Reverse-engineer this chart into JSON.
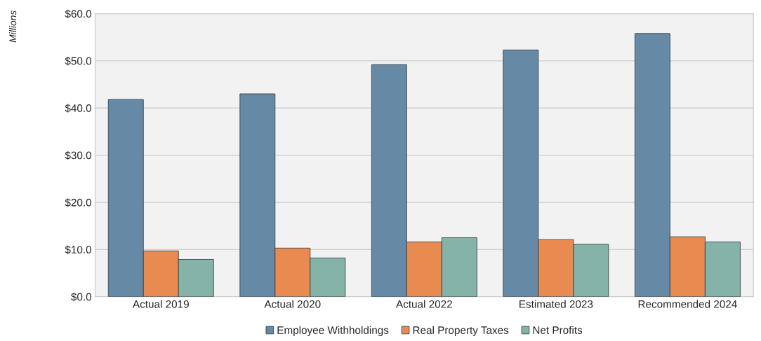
{
  "chart_data": {
    "type": "bar",
    "ylabel": "Millions",
    "categories": [
      "Actual 2019",
      "Actual 2020",
      "Actual 2022",
      "Estimated 2023",
      "Recommended 2024"
    ],
    "series": [
      {
        "name": "Employee Withholdings",
        "color": "#6689a5",
        "values": [
          41.8,
          43.0,
          49.2,
          52.3,
          55.8
        ]
      },
      {
        "name": "Real Property Taxes",
        "color": "#e98b51",
        "values": [
          9.7,
          10.3,
          11.6,
          12.1,
          12.7
        ]
      },
      {
        "name": "Net Profits",
        "color": "#86b3a7",
        "values": [
          7.9,
          8.2,
          12.5,
          11.1,
          11.6
        ]
      }
    ],
    "ylim": [
      0,
      60
    ],
    "yticks": [
      {
        "value": 0,
        "label": "$0.0"
      },
      {
        "value": 10,
        "label": "$10.0"
      },
      {
        "value": 20,
        "label": "$20.0"
      },
      {
        "value": 30,
        "label": "$30.0"
      },
      {
        "value": 40,
        "label": "$40.0"
      },
      {
        "value": 50,
        "label": "$50.0"
      },
      {
        "value": 60,
        "label": "$60.0"
      }
    ],
    "grid": "y",
    "legend": "bottom"
  }
}
